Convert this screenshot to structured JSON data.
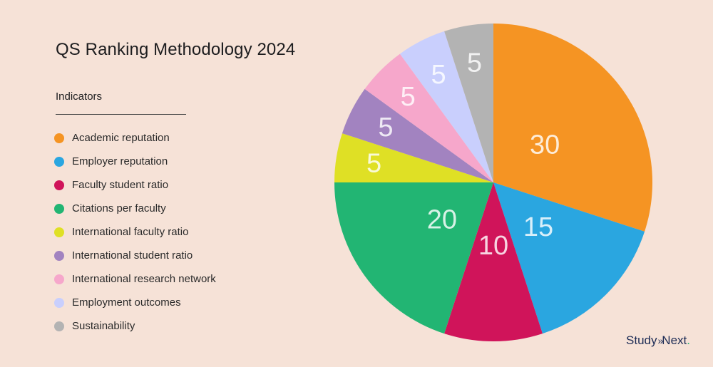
{
  "chart_data": {
    "type": "pie",
    "title": "QS Ranking Methodology 2024",
    "legend_title": "Indicators",
    "legend_position": "left",
    "start": "top",
    "direction": "clockwise",
    "slices": [
      {
        "label": "Academic reputation",
        "value": 30,
        "color": "#f59423"
      },
      {
        "label": "Employer reputation",
        "value": 15,
        "color": "#2aa6e0"
      },
      {
        "label": "Faculty student ratio",
        "value": 10,
        "color": "#d0145a"
      },
      {
        "label": "Citations per faculty",
        "value": 20,
        "color": "#22b573"
      },
      {
        "label": "International faculty ratio",
        "value": 5,
        "color": "#dfe025"
      },
      {
        "label": "International student ratio",
        "value": 5,
        "color": "#a283c0"
      },
      {
        "label": "International research network",
        "value": 5,
        "color": "#f6a7cb"
      },
      {
        "label": "Employment outcomes",
        "value": 5,
        "color": "#c9cffd"
      },
      {
        "label": "Sustainability",
        "value": 5,
        "color": "#b3b3b3"
      }
    ]
  },
  "brand": {
    "left": "Study",
    "chevrons": "»",
    "right": "Next",
    "dot": "."
  }
}
